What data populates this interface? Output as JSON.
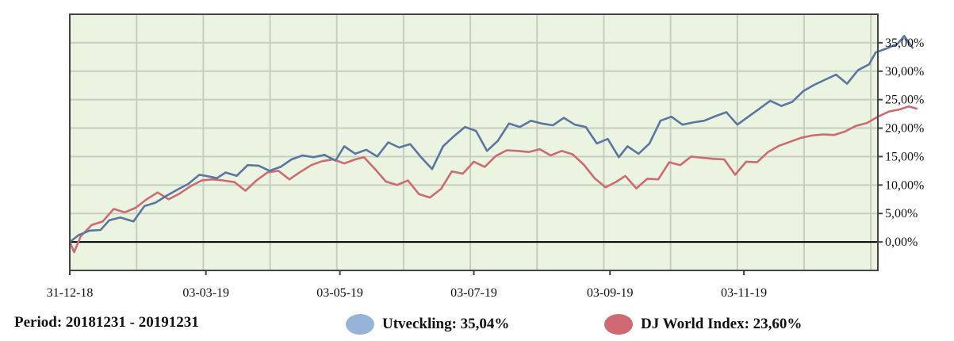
{
  "footer": {
    "period_label": "Period: 20181231 - 20191231",
    "legend": [
      {
        "label": "Utveckling: 35,04%",
        "color": "#97b4d6"
      },
      {
        "label": "DJ World Index: 23,60%",
        "color": "#d06a72"
      }
    ]
  },
  "chart_data": {
    "type": "line",
    "title": "",
    "xlabel": "",
    "ylabel": "",
    "x_range": [
      "2018-12-31",
      "2020-01-03"
    ],
    "ylim": [
      -5,
      40
    ],
    "x_tick_labels": [
      {
        "date": "2018-12-31",
        "label": "31-12-18"
      },
      {
        "date": "2019-03-03",
        "label": "03-03-19"
      },
      {
        "date": "2019-05-03",
        "label": "03-05-19"
      },
      {
        "date": "2019-07-03",
        "label": "03-07-19"
      },
      {
        "date": "2019-09-03",
        "label": "03-09-19"
      },
      {
        "date": "2019-11-03",
        "label": "03-11-19"
      }
    ],
    "y_ticks": [
      0,
      5,
      10,
      15,
      20,
      25,
      30,
      35
    ],
    "y_tick_labels": [
      "0,00%",
      "5,00%",
      "10,00%",
      "15,00%",
      "20,00%",
      "25,00%",
      "30,00%",
      "35,00%"
    ],
    "grid": true,
    "background_color": "#eaf4e0",
    "grid_color": "#c4cfc0",
    "zero_line_color": "#000000",
    "series": [
      {
        "name": "Utveckling",
        "color": "#5a76a2",
        "points": [
          [
            "2018-12-31",
            0.0
          ],
          [
            "2019-01-04",
            1.2
          ],
          [
            "2019-01-09",
            2.0
          ],
          [
            "2019-01-14",
            2.1
          ],
          [
            "2019-01-18",
            3.8
          ],
          [
            "2019-01-23",
            4.3
          ],
          [
            "2019-01-29",
            3.6
          ],
          [
            "2019-02-03",
            6.3
          ],
          [
            "2019-02-08",
            6.9
          ],
          [
            "2019-02-13",
            8.1
          ],
          [
            "2019-02-18",
            9.2
          ],
          [
            "2019-02-23",
            10.2
          ],
          [
            "2019-02-28",
            11.8
          ],
          [
            "2019-03-03",
            11.6
          ],
          [
            "2019-03-08",
            11.2
          ],
          [
            "2019-03-12",
            12.2
          ],
          [
            "2019-03-17",
            11.6
          ],
          [
            "2019-03-22",
            13.5
          ],
          [
            "2019-03-27",
            13.4
          ],
          [
            "2019-04-01",
            12.5
          ],
          [
            "2019-04-06",
            13.2
          ],
          [
            "2019-04-11",
            14.5
          ],
          [
            "2019-04-16",
            15.2
          ],
          [
            "2019-04-21",
            14.9
          ],
          [
            "2019-04-26",
            15.3
          ],
          [
            "2019-05-01",
            14.3
          ],
          [
            "2019-05-05",
            16.8
          ],
          [
            "2019-05-10",
            15.5
          ],
          [
            "2019-05-15",
            16.2
          ],
          [
            "2019-05-20",
            15.0
          ],
          [
            "2019-05-25",
            17.5
          ],
          [
            "2019-05-30",
            16.6
          ],
          [
            "2019-06-04",
            17.2
          ],
          [
            "2019-06-09",
            14.9
          ],
          [
            "2019-06-14",
            12.8
          ],
          [
            "2019-06-19",
            16.8
          ],
          [
            "2019-06-24",
            18.6
          ],
          [
            "2019-06-29",
            20.2
          ],
          [
            "2019-07-04",
            19.5
          ],
          [
            "2019-07-09",
            16.0
          ],
          [
            "2019-07-14",
            17.8
          ],
          [
            "2019-07-19",
            20.8
          ],
          [
            "2019-07-24",
            20.2
          ],
          [
            "2019-07-29",
            21.3
          ],
          [
            "2019-08-03",
            20.8
          ],
          [
            "2019-08-08",
            20.5
          ],
          [
            "2019-08-13",
            21.8
          ],
          [
            "2019-08-18",
            20.6
          ],
          [
            "2019-08-23",
            20.2
          ],
          [
            "2019-08-28",
            17.3
          ],
          [
            "2019-09-02",
            18.1
          ],
          [
            "2019-09-07",
            14.9
          ],
          [
            "2019-09-11",
            16.8
          ],
          [
            "2019-09-16",
            15.5
          ],
          [
            "2019-09-21",
            17.3
          ],
          [
            "2019-09-26",
            21.3
          ],
          [
            "2019-10-01",
            22.0
          ],
          [
            "2019-10-06",
            20.6
          ],
          [
            "2019-10-11",
            21.0
          ],
          [
            "2019-10-16",
            21.3
          ],
          [
            "2019-10-21",
            22.1
          ],
          [
            "2019-10-26",
            22.8
          ],
          [
            "2019-10-31",
            20.6
          ],
          [
            "2019-11-05",
            22.0
          ],
          [
            "2019-11-10",
            23.4
          ],
          [
            "2019-11-15",
            24.8
          ],
          [
            "2019-11-20",
            23.9
          ],
          [
            "2019-11-25",
            24.6
          ],
          [
            "2019-11-30",
            26.5
          ],
          [
            "2019-12-05",
            27.6
          ],
          [
            "2019-12-10",
            28.5
          ],
          [
            "2019-12-15",
            29.4
          ],
          [
            "2019-12-20",
            27.8
          ],
          [
            "2019-12-25",
            30.2
          ],
          [
            "2019-12-30",
            31.2
          ],
          [
            "2020-01-02",
            33.3
          ],
          [
            "2020-01-07",
            34.0
          ],
          [
            "2020-01-12",
            34.8
          ],
          [
            "2020-01-15",
            36.2
          ],
          [
            "2020-01-19",
            34.0
          ]
        ]
      },
      {
        "name": "DJ World Index",
        "color": "#d06a72",
        "points": [
          [
            "2018-12-31",
            0.0
          ],
          [
            "2019-01-02",
            -1.8
          ],
          [
            "2019-01-05",
            1.0
          ],
          [
            "2019-01-10",
            3.0
          ],
          [
            "2019-01-15",
            3.6
          ],
          [
            "2019-01-20",
            5.8
          ],
          [
            "2019-01-25",
            5.2
          ],
          [
            "2019-01-30",
            6.0
          ],
          [
            "2019-02-04",
            7.5
          ],
          [
            "2019-02-09",
            8.7
          ],
          [
            "2019-02-14",
            7.5
          ],
          [
            "2019-02-19",
            8.5
          ],
          [
            "2019-02-24",
            9.8
          ],
          [
            "2019-03-01",
            10.8
          ],
          [
            "2019-03-06",
            11.0
          ],
          [
            "2019-03-11",
            10.8
          ],
          [
            "2019-03-16",
            10.5
          ],
          [
            "2019-03-21",
            9.0
          ],
          [
            "2019-03-26",
            10.8
          ],
          [
            "2019-03-31",
            12.2
          ],
          [
            "2019-04-05",
            12.5
          ],
          [
            "2019-04-10",
            11.0
          ],
          [
            "2019-04-15",
            12.3
          ],
          [
            "2019-04-20",
            13.5
          ],
          [
            "2019-04-25",
            14.2
          ],
          [
            "2019-04-30",
            14.5
          ],
          [
            "2019-05-05",
            13.8
          ],
          [
            "2019-05-10",
            14.5
          ],
          [
            "2019-05-14",
            14.9
          ],
          [
            "2019-05-19",
            12.8
          ],
          [
            "2019-05-24",
            10.6
          ],
          [
            "2019-05-29",
            10.0
          ],
          [
            "2019-06-03",
            10.8
          ],
          [
            "2019-06-08",
            8.4
          ],
          [
            "2019-06-13",
            7.8
          ],
          [
            "2019-06-18",
            9.3
          ],
          [
            "2019-06-23",
            12.4
          ],
          [
            "2019-06-28",
            12.0
          ],
          [
            "2019-07-03",
            14.1
          ],
          [
            "2019-07-08",
            13.2
          ],
          [
            "2019-07-13",
            15.1
          ],
          [
            "2019-07-18",
            16.1
          ],
          [
            "2019-07-23",
            16.0
          ],
          [
            "2019-07-28",
            15.8
          ],
          [
            "2019-08-02",
            16.3
          ],
          [
            "2019-08-07",
            15.2
          ],
          [
            "2019-08-12",
            16.0
          ],
          [
            "2019-08-17",
            15.4
          ],
          [
            "2019-08-22",
            13.6
          ],
          [
            "2019-08-27",
            11.2
          ],
          [
            "2019-09-01",
            9.6
          ],
          [
            "2019-09-06",
            10.6
          ],
          [
            "2019-09-10",
            11.6
          ],
          [
            "2019-09-15",
            9.4
          ],
          [
            "2019-09-20",
            11.1
          ],
          [
            "2019-09-25",
            11.0
          ],
          [
            "2019-09-30",
            14.0
          ],
          [
            "2019-10-05",
            13.5
          ],
          [
            "2019-10-10",
            15.0
          ],
          [
            "2019-10-15",
            14.8
          ],
          [
            "2019-10-20",
            14.6
          ],
          [
            "2019-10-25",
            14.5
          ],
          [
            "2019-10-30",
            11.8
          ],
          [
            "2019-11-04",
            14.1
          ],
          [
            "2019-11-09",
            14.0
          ],
          [
            "2019-11-14",
            15.8
          ],
          [
            "2019-11-19",
            16.9
          ],
          [
            "2019-11-24",
            17.6
          ],
          [
            "2019-11-29",
            18.3
          ],
          [
            "2019-12-04",
            18.7
          ],
          [
            "2019-12-09",
            18.9
          ],
          [
            "2019-12-14",
            18.8
          ],
          [
            "2019-12-19",
            19.4
          ],
          [
            "2019-12-24",
            20.4
          ],
          [
            "2019-12-29",
            20.9
          ],
          [
            "2020-01-03",
            22.0
          ],
          [
            "2020-01-08",
            22.9
          ],
          [
            "2020-01-13",
            23.3
          ],
          [
            "2020-01-17",
            23.8
          ],
          [
            "2020-01-21",
            23.4
          ]
        ]
      }
    ]
  }
}
